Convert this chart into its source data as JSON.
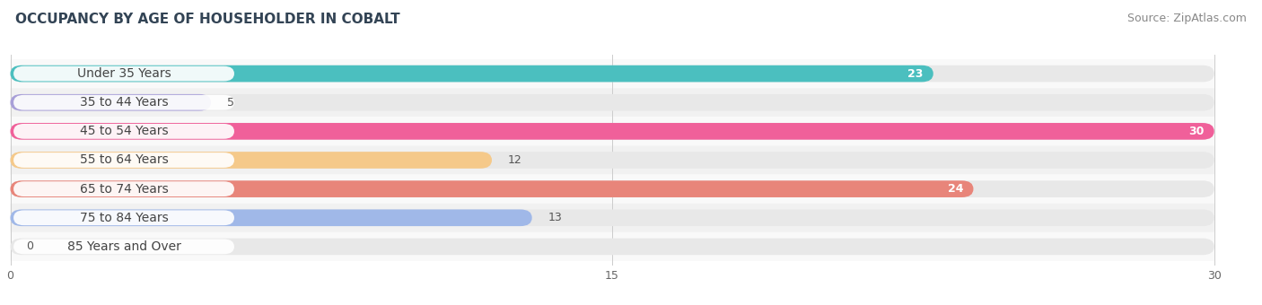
{
  "title": "OCCUPANCY BY AGE OF HOUSEHOLDER IN COBALT",
  "source": "Source: ZipAtlas.com",
  "categories": [
    "Under 35 Years",
    "35 to 44 Years",
    "45 to 54 Years",
    "55 to 64 Years",
    "65 to 74 Years",
    "75 to 84 Years",
    "85 Years and Over"
  ],
  "values": [
    23,
    5,
    30,
    12,
    24,
    13,
    0
  ],
  "bar_colors": [
    "#4bbfbf",
    "#a89fd8",
    "#f0609a",
    "#f5c98a",
    "#e8857a",
    "#a0b8e8",
    "#d4a8d8"
  ],
  "track_color": "#e8e8e8",
  "xlim": [
    0,
    30
  ],
  "xticks": [
    0,
    15,
    30
  ],
  "title_fontsize": 11,
  "source_fontsize": 9,
  "label_fontsize": 10,
  "value_fontsize": 9,
  "background_color": "#ffffff",
  "bar_height": 0.58,
  "row_bg_colors": [
    "#f9f9f9",
    "#f1f1f1"
  ]
}
